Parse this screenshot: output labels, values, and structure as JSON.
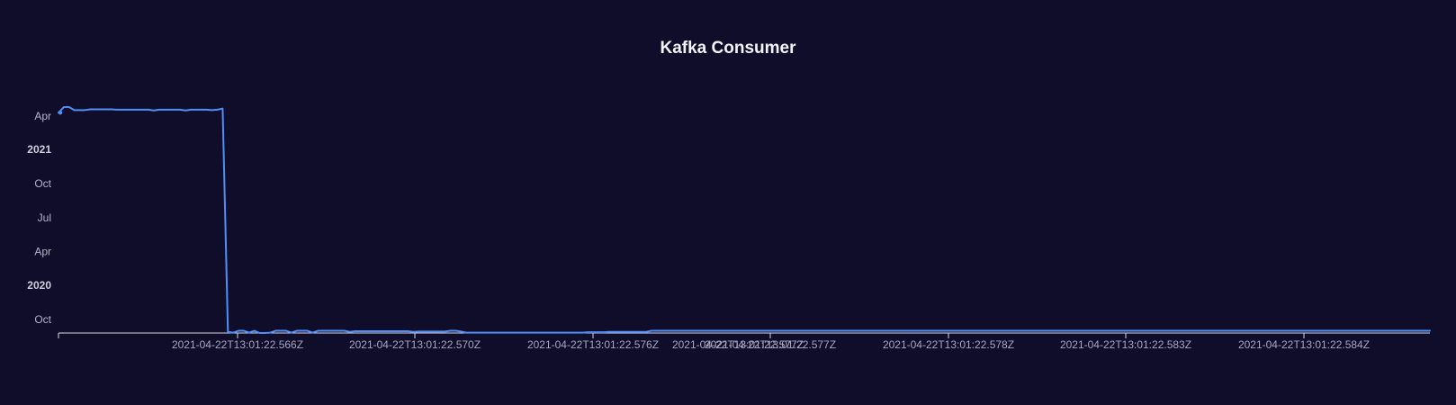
{
  "colors": {
    "background": "#100d2a",
    "series": "#4f8ef7"
  },
  "chart_data": {
    "type": "line",
    "title": "Kafka Consumer",
    "xlabel": "",
    "ylabel": "",
    "y_axis_kind": "time",
    "ylim": [
      "2019-08-25",
      "2021-06-15"
    ],
    "y_ticks": [
      {
        "value": "2019-10-01",
        "label": "Oct",
        "bold": false
      },
      {
        "value": "2020-01-01",
        "label": "2020",
        "bold": true
      },
      {
        "value": "2020-04-01",
        "label": "Apr",
        "bold": false
      },
      {
        "value": "2020-07-01",
        "label": "Jul",
        "bold": false
      },
      {
        "value": "2020-10-01",
        "label": "Oct",
        "bold": false
      },
      {
        "value": "2021-01-01",
        "label": "2021",
        "bold": true
      },
      {
        "value": "2021-04-01",
        "label": "Apr",
        "bold": false
      }
    ],
    "x_axis_kind": "category",
    "x_ticks": [
      "2021-04-22T13:01:22.566Z",
      "2021-04-22T13:01:22.570Z",
      "2021-04-22T13:01:22.576Z",
      "2021-04-22T13:01:22.577Z",
      "2021-04-22T13:01:22.577Z",
      "2021-04-22T13:01:22.578Z",
      "2021-04-22T13:01:22.583Z",
      "2021-04-22T13:01:22.584Z"
    ],
    "grid": false,
    "legend": "none",
    "series": [
      {
        "y": [
          "2021-04-10",
          "2021-04-25",
          "2021-04-25",
          "2021-04-17",
          "2021-04-17",
          "2021-04-17",
          "2021-04-19",
          "2021-04-19",
          "2021-04-19",
          "2021-04-19",
          "2021-04-19",
          "2021-04-18",
          "2021-04-18",
          "2021-04-18",
          "2021-04-18",
          "2021-04-18",
          "2021-04-18",
          "2021-04-18",
          "2021-04-16",
          "2021-04-18",
          "2021-04-18",
          "2021-04-18",
          "2021-04-18",
          "2021-04-18",
          "2021-04-16",
          "2021-04-18",
          "2021-04-18",
          "2021-04-18",
          "2021-04-18",
          "2021-04-17",
          "2021-04-18",
          "2021-04-21",
          "2019-08-28",
          "2019-08-26",
          "2019-08-31",
          "2019-08-31",
          "2019-08-26",
          "2019-08-31",
          "2019-08-25",
          "2019-08-25",
          "2019-08-26",
          "2019-08-31",
          "2019-08-31",
          "2019-08-31",
          "2019-08-26",
          "2019-08-31",
          "2019-08-31",
          "2019-08-31",
          "2019-08-26",
          "2019-08-31",
          "2019-08-31",
          "2019-08-31",
          "2019-08-31",
          "2019-08-31",
          "2019-08-31",
          "2019-08-28",
          "2019-08-30",
          "2019-08-30",
          "2019-08-30",
          "2019-08-30",
          "2019-08-30",
          "2019-08-30",
          "2019-08-30",
          "2019-08-30",
          "2019-08-30",
          "2019-08-30",
          "2019-08-30",
          "2019-08-28",
          "2019-08-29",
          "2019-08-29",
          "2019-08-29",
          "2019-08-29",
          "2019-08-29",
          "2019-08-29",
          "2019-08-31",
          "2019-08-31",
          "2019-08-29",
          "2019-08-26",
          "2019-08-26",
          "2019-08-26",
          "2019-08-26",
          "2019-08-26",
          "2019-08-26",
          "2019-08-26",
          "2019-08-26",
          "2019-08-26",
          "2019-08-26",
          "2019-08-26",
          "2019-08-26",
          "2019-08-26",
          "2019-08-26",
          "2019-08-26",
          "2019-08-26",
          "2019-08-26",
          "2019-08-26",
          "2019-08-26",
          "2019-08-26",
          "2019-08-26",
          "2019-08-26",
          "2019-08-26",
          "2019-08-27",
          "2019-08-27",
          "2019-08-27",
          "2019-08-27",
          "2019-08-28",
          "2019-08-28",
          "2019-08-28",
          "2019-08-28",
          "2019-08-28",
          "2019-08-28",
          "2019-08-28",
          "2019-08-28",
          "2019-08-31",
          "2019-08-31",
          "2019-08-31",
          "2019-08-31",
          "2019-08-31",
          "2019-08-31",
          "2019-08-31",
          "2019-08-31",
          "2019-08-31",
          "2019-08-31",
          "2019-08-31",
          "2019-08-31",
          "2019-08-31",
          "2019-08-31",
          "2019-08-31",
          "2019-08-31",
          "2019-08-31",
          "2019-08-31",
          "2019-08-31",
          "2019-08-31",
          "2019-08-31",
          "2019-08-31",
          "2019-08-31",
          "2019-08-31",
          "2019-08-31",
          "2019-08-31",
          "2019-08-31",
          "2019-08-31",
          "2019-08-31",
          "2019-08-31",
          "2019-08-31",
          "2019-08-31",
          "2019-08-31",
          "2019-08-31",
          "2019-08-31",
          "2019-08-31",
          "2019-08-31",
          "2019-08-31",
          "2019-08-31",
          "2019-08-31",
          "2019-08-31",
          "2019-08-31",
          "2019-08-31",
          "2019-08-31",
          "2019-08-31",
          "2019-08-31",
          "2019-08-31",
          "2019-08-31",
          "2019-08-31",
          "2019-08-31",
          "2019-08-31",
          "2019-08-31",
          "2019-08-31",
          "2019-08-31",
          "2019-08-31",
          "2019-08-31",
          "2019-08-31",
          "2019-08-31",
          "2019-08-31",
          "2019-08-31",
          "2019-08-31",
          "2019-08-31",
          "2019-08-31",
          "2019-08-31",
          "2019-08-31",
          "2019-08-31",
          "2019-08-31",
          "2019-08-31",
          "2019-08-31",
          "2019-08-31",
          "2019-08-31",
          "2019-08-31",
          "2019-08-31",
          "2019-08-31",
          "2019-08-31",
          "2019-08-31",
          "2019-08-31",
          "2019-08-31",
          "2019-08-31",
          "2019-08-31",
          "2019-08-31",
          "2019-08-31",
          "2019-08-31",
          "2019-08-31",
          "2019-08-31",
          "2019-08-31",
          "2019-08-31",
          "2019-08-31",
          "2019-08-31",
          "2019-08-31",
          "2019-08-31",
          "2019-08-31",
          "2019-08-31",
          "2019-08-31",
          "2019-08-31",
          "2019-08-31",
          "2019-08-31",
          "2019-08-31",
          "2019-08-31",
          "2019-08-31",
          "2019-08-31",
          "2019-08-31",
          "2019-08-31",
          "2019-08-31",
          "2019-08-31",
          "2019-08-31",
          "2019-08-31",
          "2019-08-31",
          "2019-08-31",
          "2019-08-31",
          "2019-08-31",
          "2019-08-31",
          "2019-08-31",
          "2019-08-31",
          "2019-08-31",
          "2019-08-31",
          "2019-08-31",
          "2019-08-31",
          "2019-08-31",
          "2019-08-31",
          "2019-08-31",
          "2019-08-31",
          "2019-08-31",
          "2019-08-31",
          "2019-08-31",
          "2019-08-31",
          "2019-08-31",
          "2019-08-31",
          "2019-08-31",
          "2019-08-31",
          "2019-08-31",
          "2019-08-31",
          "2019-08-31",
          "2019-08-31",
          "2019-08-31",
          "2019-08-31",
          "2019-08-31",
          "2019-08-31",
          "2019-08-31",
          "2019-08-31",
          "2019-08-31",
          "2019-08-31",
          "2019-08-31",
          "2019-08-31",
          "2019-08-31",
          "2019-08-31",
          "2019-08-31",
          "2019-08-31"
        ]
      }
    ]
  }
}
